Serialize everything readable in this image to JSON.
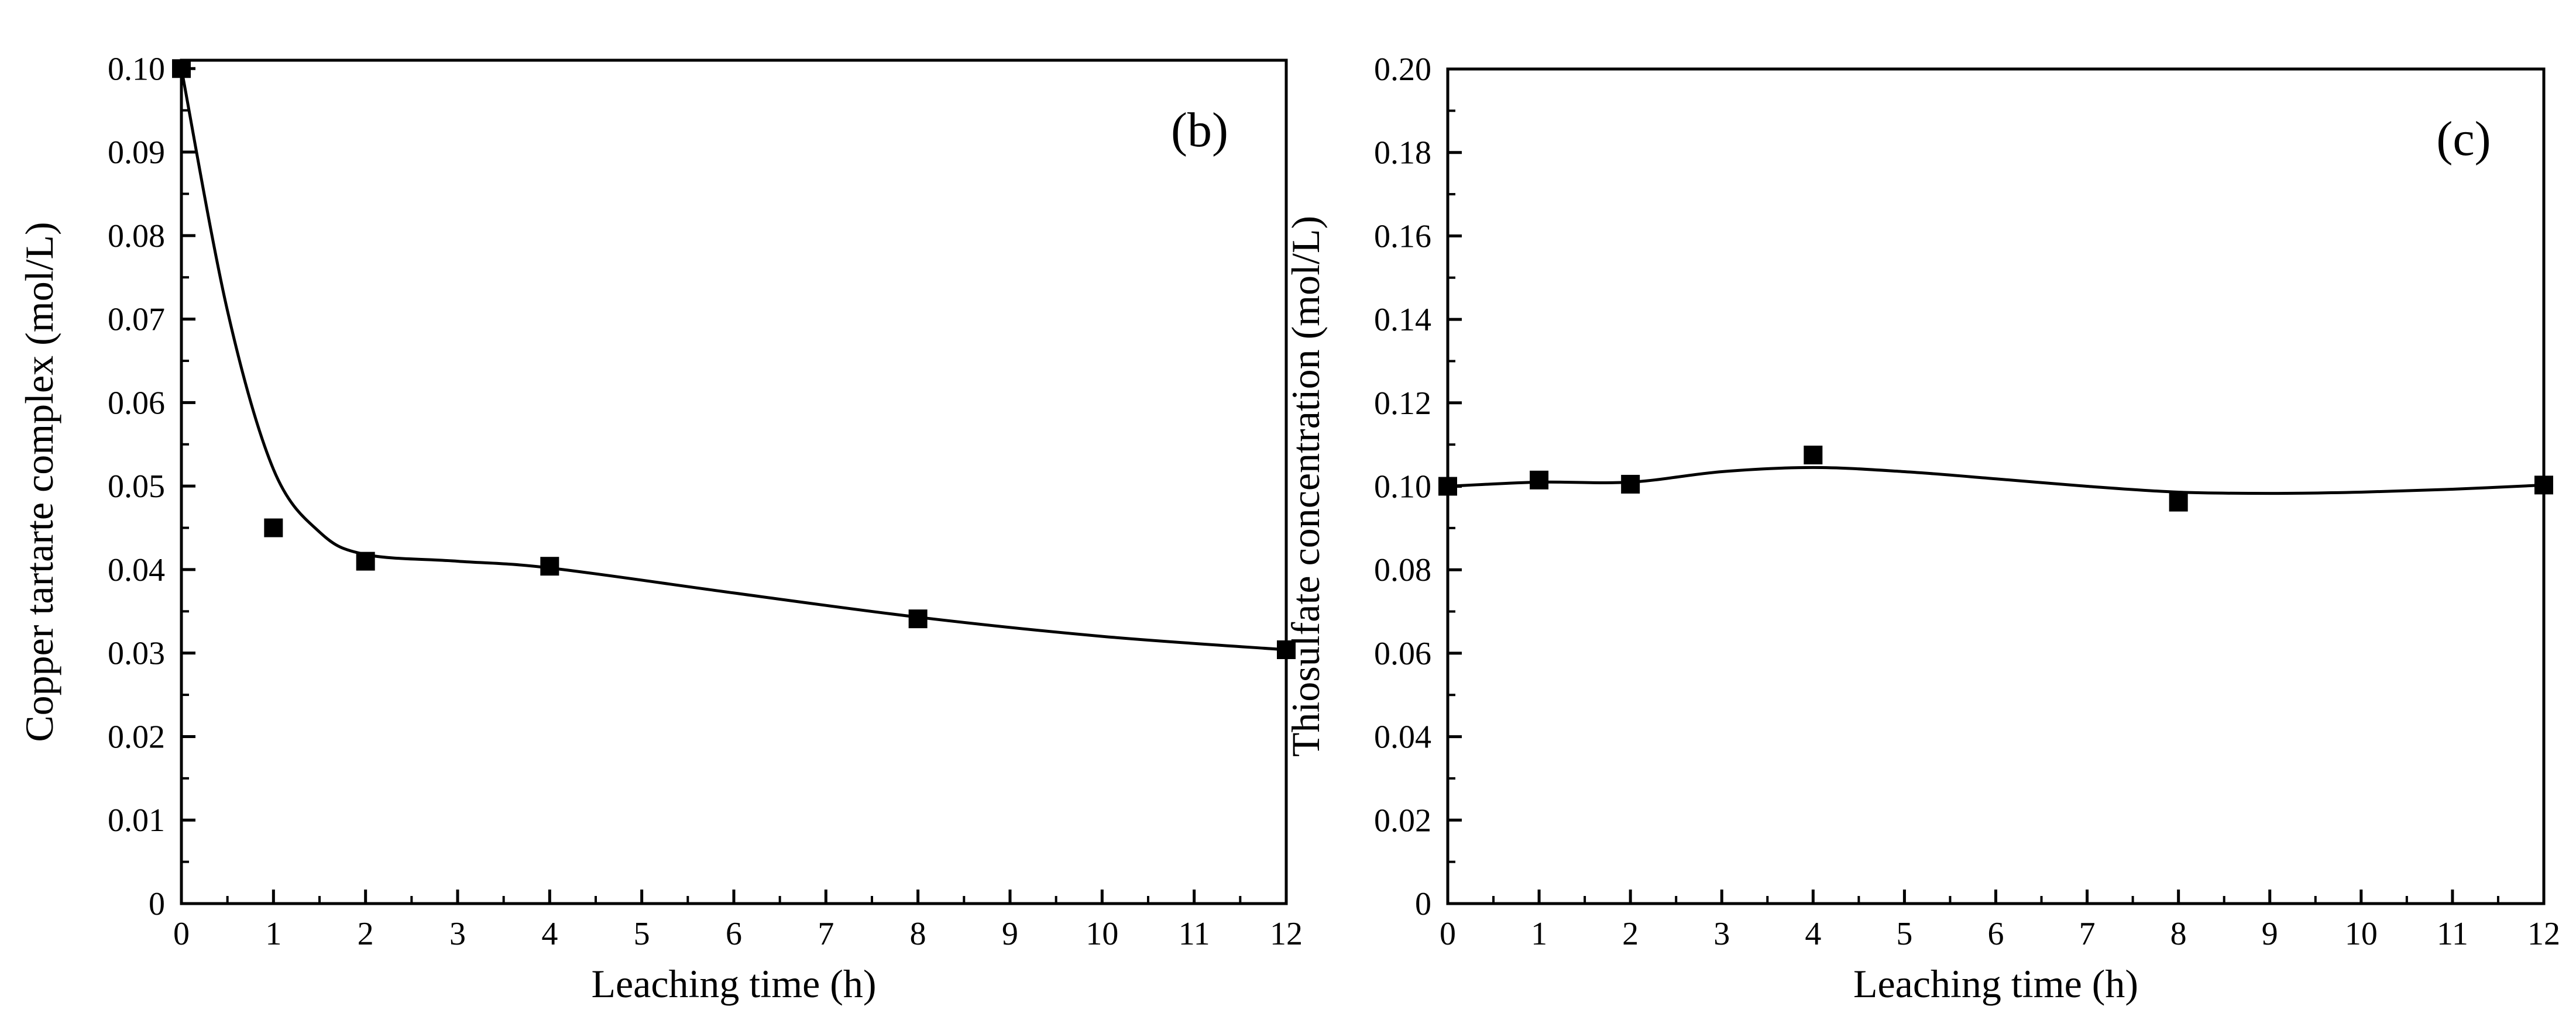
{
  "colors": {
    "foreground": "#000000",
    "background": "#ffffff"
  },
  "chart_data": [
    {
      "type": "scatter",
      "panel_label": "(b)",
      "title": "",
      "xlabel": "Leaching time (h)",
      "ylabel": "Copper tartarte complex (mol/L)",
      "xlim": [
        0,
        12
      ],
      "ylim": [
        0,
        0.101
      ],
      "xticks": [
        0,
        1,
        2,
        3,
        4,
        5,
        6,
        7,
        8,
        9,
        10,
        11,
        12
      ],
      "xtick_labels": [
        "0",
        "1",
        "2",
        "3",
        "4",
        "5",
        "6",
        "7",
        "8",
        "9",
        "10",
        "11",
        "12"
      ],
      "yticks": [
        0,
        0.01,
        0.02,
        0.03,
        0.04,
        0.05,
        0.06,
        0.07,
        0.08,
        0.09,
        0.1
      ],
      "ytick_labels": [
        "0",
        "0.01",
        "0.02",
        "0.03",
        "0.04",
        "0.05",
        "0.06",
        "0.07",
        "0.08",
        "0.09",
        "0.10"
      ],
      "series": [
        {
          "name": "Copper tartarte complex",
          "marker": "square",
          "x": [
            0,
            1,
            2,
            4,
            8,
            12
          ],
          "y": [
            0.1,
            0.045,
            0.041,
            0.0404,
            0.0341,
            0.0304
          ]
        }
      ],
      "fit_curve": {
        "x": [
          0,
          0.5,
          1,
          1.5,
          2,
          3,
          4,
          6,
          8,
          10,
          12
        ],
        "y": [
          0.1,
          0.071,
          0.052,
          0.0445,
          0.0418,
          0.041,
          0.0402,
          0.0372,
          0.0343,
          0.032,
          0.0304
        ]
      }
    },
    {
      "type": "scatter",
      "panel_label": "(c)",
      "title": "",
      "xlabel": "Leaching time (h)",
      "ylabel": "Thiosulfate concentration (mol/L)",
      "xlim": [
        0,
        12
      ],
      "ylim": [
        0,
        0.2
      ],
      "xticks": [
        0,
        1,
        2,
        3,
        4,
        5,
        6,
        7,
        8,
        9,
        10,
        11,
        12
      ],
      "xtick_labels": [
        "0",
        "1",
        "2",
        "3",
        "4",
        "5",
        "6",
        "7",
        "8",
        "9",
        "10",
        "11",
        "12"
      ],
      "yticks": [
        0,
        0.02,
        0.04,
        0.06,
        0.08,
        0.1,
        0.12,
        0.14,
        0.16,
        0.18,
        0.2
      ],
      "ytick_labels": [
        "0",
        "0.02",
        "0.04",
        "0.06",
        "0.08",
        "0.10",
        "0.12",
        "0.14",
        "0.16",
        "0.18",
        "0.20"
      ],
      "series": [
        {
          "name": "Thiosulfate concentration",
          "marker": "square",
          "x": [
            0,
            1,
            2,
            4,
            8,
            12
          ],
          "y": [
            0.1,
            0.1015,
            0.1005,
            0.1075,
            0.0962,
            0.1003
          ]
        }
      ],
      "fit_curve": {
        "x": [
          0,
          1,
          2,
          3,
          4,
          5,
          6,
          7,
          8,
          9,
          10,
          11,
          12
        ],
        "y": [
          0.1,
          0.101,
          0.101,
          0.1035,
          0.1045,
          0.1035,
          0.1018,
          0.1,
          0.0986,
          0.0983,
          0.0986,
          0.0993,
          0.1003
        ]
      }
    }
  ]
}
